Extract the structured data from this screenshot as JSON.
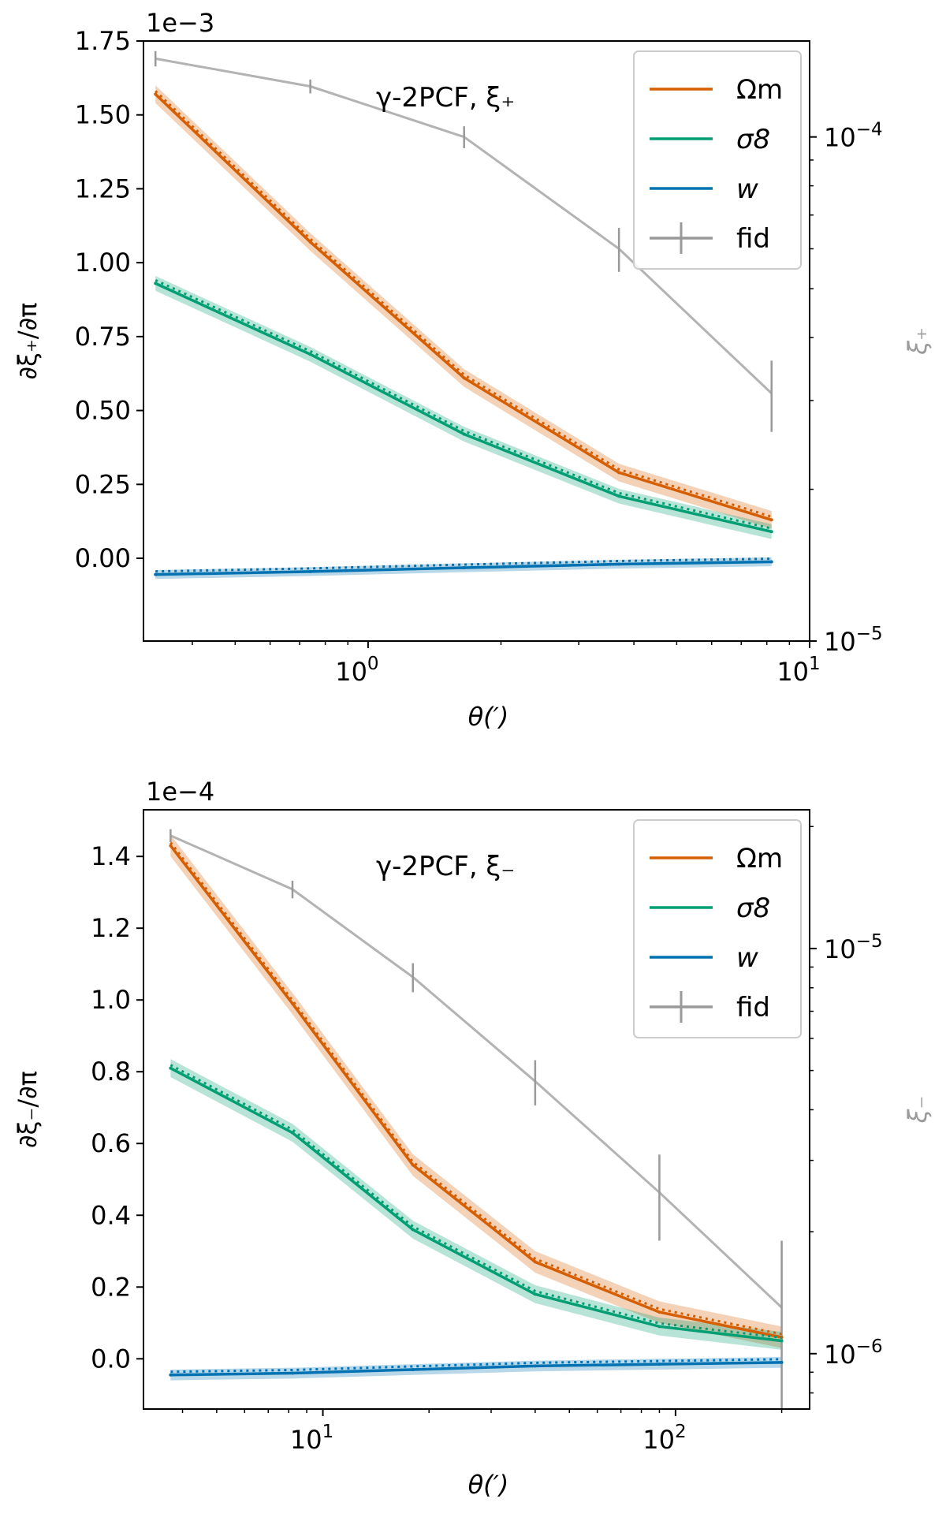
{
  "chart_data": [
    {
      "type": "line",
      "annotation": "γ-2PCF, ξ₊",
      "xlabel": "θ(′)",
      "ylabel": "∂ξ₊/∂π",
      "y_offset_text": "1e−3",
      "y_right_label": "ξ₊",
      "x_scale": "log",
      "xlim": [
        0.31,
        10
      ],
      "ylim": [
        -0.28,
        1.75
      ],
      "y_scale_factor": 0.001,
      "y_ticks": [
        "0.00",
        "0.25",
        "0.50",
        "0.75",
        "1.00",
        "1.25",
        "1.50",
        "1.75"
      ],
      "y_tick_values": [
        0,
        0.25,
        0.5,
        0.75,
        1.0,
        1.25,
        1.5,
        1.75
      ],
      "x_ticks": [
        {
          "value": 1,
          "base": "10",
          "exp": "0"
        },
        {
          "value": 10,
          "base": "10",
          "exp": "1"
        }
      ],
      "x": [
        0.33,
        0.74,
        1.65,
        3.7,
        8.2
      ],
      "series": [
        {
          "name": "Ωm",
          "color": "#d55e00",
          "values": [
            1.57,
            1.07,
            0.61,
            0.29,
            0.13
          ],
          "band": 0.03
        },
        {
          "name": "σ8",
          "color": "#009e73",
          "values": [
            0.93,
            0.69,
            0.42,
            0.21,
            0.09
          ],
          "band": 0.025
        },
        {
          "name": "w",
          "color": "#0072b2",
          "values": [
            -0.055,
            -0.045,
            -0.032,
            -0.02,
            -0.012
          ],
          "band": 0.015
        }
      ],
      "fid": {
        "name": "fid",
        "color": "#999999",
        "y_right_ticks": [
          {
            "value": 1e-05,
            "base": "10",
            "exp": "−5"
          },
          {
            "value": 0.0001,
            "base": "10",
            "exp": "−4"
          }
        ],
        "y_right_range": [
          1e-05,
          0.000155
        ],
        "x": [
          0.33,
          0.74,
          1.65,
          3.7,
          8.2
        ],
        "values": [
          0.000143,
          0.000126,
          0.0001,
          6e-05,
          3.1e-05
        ],
        "err_low": [
          0.000138,
          0.000122,
          9.5e-05,
          5.4e-05,
          2.6e-05
        ],
        "err_high": [
          0.000148,
          0.00013,
          0.000105,
          6.6e-05,
          3.6e-05
        ]
      },
      "legend": {
        "position": "top-right",
        "entries": [
          "Ωm",
          "σ8",
          "w",
          "fid"
        ]
      }
    },
    {
      "type": "line",
      "annotation": "γ-2PCF, ξ₋",
      "xlabel": "θ(′)",
      "ylabel": "∂ξ₋/∂π",
      "y_offset_text": "1e−4",
      "y_right_label": "ξ₋",
      "x_scale": "log",
      "xlim": [
        3.1,
        240
      ],
      "ylim": [
        -0.14,
        1.53
      ],
      "y_scale_factor": 0.0001,
      "y_ticks": [
        "0.0",
        "0.2",
        "0.4",
        "0.6",
        "0.8",
        "1.0",
        "1.2",
        "1.4"
      ],
      "y_tick_values": [
        0,
        0.2,
        0.4,
        0.6,
        0.8,
        1.0,
        1.2,
        1.4
      ],
      "x_ticks": [
        {
          "value": 10,
          "base": "10",
          "exp": "1"
        },
        {
          "value": 100,
          "base": "10",
          "exp": "2"
        }
      ],
      "x": [
        3.7,
        8.2,
        18,
        40,
        90,
        200
      ],
      "series": [
        {
          "name": "Ωm",
          "color": "#d55e00",
          "values": [
            1.43,
            0.99,
            0.54,
            0.27,
            0.13,
            0.06
          ],
          "band": 0.03
        },
        {
          "name": "σ8",
          "color": "#009e73",
          "values": [
            0.81,
            0.63,
            0.36,
            0.18,
            0.09,
            0.05
          ],
          "band": 0.025
        },
        {
          "name": "w",
          "color": "#0072b2",
          "values": [
            -0.045,
            -0.04,
            -0.03,
            -0.02,
            -0.015,
            -0.01
          ],
          "band": 0.015
        }
      ],
      "fid": {
        "name": "fid",
        "color": "#999999",
        "y_right_ticks": [
          {
            "value": 1e-06,
            "base": "10",
            "exp": "−6"
          },
          {
            "value": 1e-05,
            "base": "10",
            "exp": "−5"
          }
        ],
        "y_right_range": [
          7.3e-07,
          2.2e-05
        ],
        "x": [
          3.7,
          8.2,
          18,
          40,
          90,
          200
        ],
        "values": [
          1.9e-05,
          1.4e-05,
          8.5e-06,
          4.7e-06,
          2.5e-06,
          1.3e-06
        ],
        "err_low": [
          1.83e-05,
          1.33e-05,
          7.8e-06,
          4.1e-06,
          1.9e-06,
          7.3e-07
        ],
        "err_high": [
          1.97e-05,
          1.47e-05,
          9.2e-06,
          5.3e-06,
          3.1e-06,
          1.9e-06
        ]
      },
      "legend": {
        "position": "top-right",
        "entries": [
          "Ωm",
          "σ8",
          "w",
          "fid"
        ]
      }
    }
  ]
}
